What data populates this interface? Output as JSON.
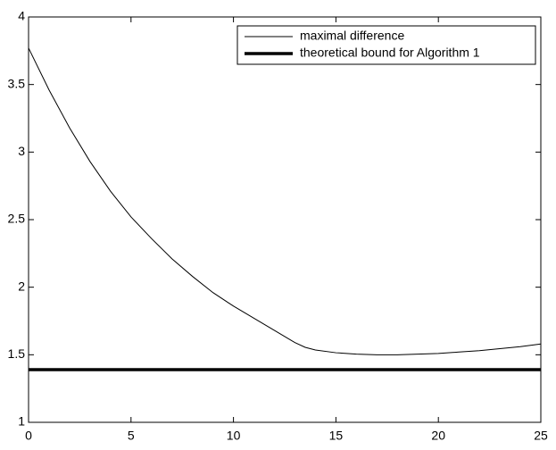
{
  "chart_data": {
    "type": "line",
    "x": [
      0,
      1,
      2,
      3,
      4,
      5,
      6,
      7,
      8,
      9,
      10,
      11,
      12,
      13,
      13.5,
      14,
      15,
      16,
      17,
      18,
      19,
      20,
      21,
      22,
      23,
      24,
      25
    ],
    "series": [
      {
        "name": "maximal difference",
        "color": "#000000",
        "width": 1,
        "values": [
          3.77,
          3.46,
          3.18,
          2.93,
          2.71,
          2.52,
          2.36,
          2.21,
          2.08,
          1.96,
          1.86,
          1.77,
          1.68,
          1.59,
          1.555,
          1.535,
          1.515,
          1.505,
          1.5,
          1.5,
          1.505,
          1.51,
          1.52,
          1.53,
          1.545,
          1.56,
          1.58
        ]
      },
      {
        "name": "theoretical bound for Algorithm 1",
        "color": "#000000",
        "width": 3.5,
        "values": [
          1.39,
          1.39,
          1.39,
          1.39,
          1.39,
          1.39,
          1.39,
          1.39,
          1.39,
          1.39,
          1.39,
          1.39,
          1.39,
          1.39,
          1.39,
          1.39,
          1.39,
          1.39,
          1.39,
          1.39,
          1.39,
          1.39,
          1.39,
          1.39,
          1.39,
          1.39,
          1.39
        ]
      }
    ],
    "xlim": [
      0,
      25
    ],
    "xticks": [
      0,
      5,
      10,
      15,
      20,
      25
    ],
    "ylim": [
      1,
      4
    ],
    "yticks": [
      1,
      1.5,
      2,
      2.5,
      3,
      3.5,
      4
    ],
    "grid": false,
    "legend": "northeast"
  }
}
